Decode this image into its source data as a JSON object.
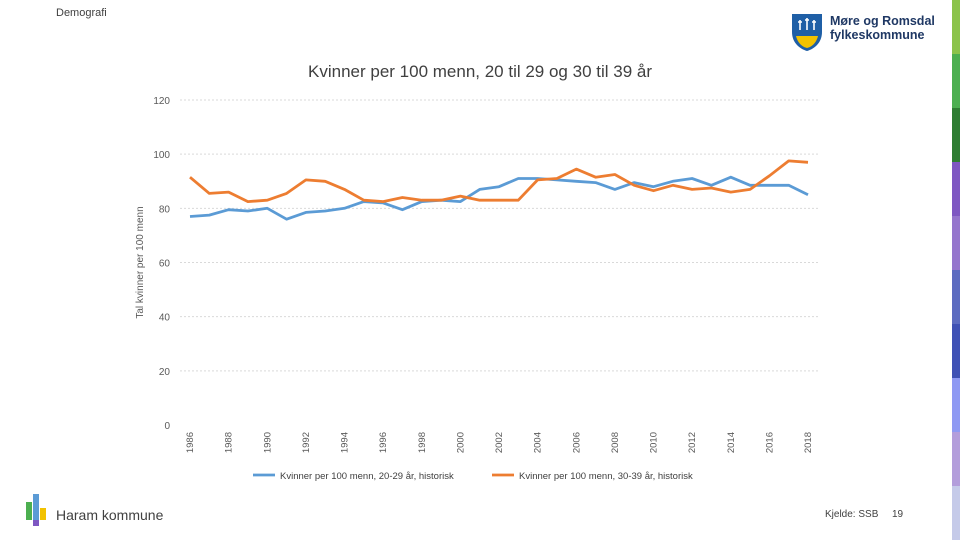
{
  "header": {
    "section": "Demografi"
  },
  "logo": {
    "line1": "Møre og Romsdal",
    "line2": "fylkeskommune"
  },
  "footer": {
    "org": "Haram kommune",
    "source": "Kjelde: SSB",
    "page": "19"
  },
  "colors": {
    "series1": "#5b9bd5",
    "series2": "#ed7d31",
    "grid": "#d9d9d9",
    "logo_blue": "#1f5fa6",
    "logo_yellow": "#f2c200"
  },
  "stripe_colors": [
    "#8bc34a",
    "#4caf50",
    "#2e7d32",
    "#7e57c2",
    "#9575cd",
    "#5c6bc0",
    "#3f51b5",
    "#8e99f3",
    "#b39ddb",
    "#c5cae9"
  ],
  "chart_data": {
    "type": "line",
    "title": "Kvinner per 100 menn, 20 til 29 og 30 til 39 år",
    "xlabel": "",
    "ylabel": "Tal kvinner per 100 menn",
    "ylim": [
      0,
      120
    ],
    "yticks": [
      "0",
      "20",
      "40",
      "60",
      "80",
      "100",
      "120"
    ],
    "xtick_labels": [
      "1986",
      "1988",
      "1990",
      "1992",
      "1994",
      "1996",
      "1998",
      "2000",
      "2002",
      "2004",
      "2006",
      "2008",
      "2010",
      "2012",
      "2014",
      "2016",
      "2018"
    ],
    "x": [
      1986,
      1987,
      1988,
      1989,
      1990,
      1991,
      1992,
      1993,
      1994,
      1995,
      1996,
      1997,
      1998,
      1999,
      2000,
      2001,
      2002,
      2003,
      2004,
      2005,
      2006,
      2007,
      2008,
      2009,
      2010,
      2011,
      2012,
      2013,
      2014,
      2015,
      2016,
      2017,
      2018
    ],
    "grid": true,
    "legend": "bottom",
    "series": [
      {
        "name": "Kvinner per 100 menn, 20-29 år, historisk",
        "values": [
          77,
          77.5,
          79.5,
          79,
          80,
          76,
          78.5,
          79,
          80,
          82.5,
          82,
          79.5,
          82.5,
          83,
          82.5,
          87,
          88,
          91,
          91,
          90.5,
          90,
          89.5,
          87,
          89.5,
          88,
          90,
          91,
          88.5,
          91.5,
          88.5,
          88.5,
          88.5,
          85
        ]
      },
      {
        "name": "Kvinner per 100 menn, 30-39 år, historisk",
        "values": [
          91.5,
          85.5,
          86,
          82.5,
          83,
          85.5,
          90.5,
          90,
          87,
          83,
          82.5,
          84,
          83,
          83,
          84.5,
          83,
          83,
          83,
          90.5,
          91,
          94.5,
          91.5,
          92.5,
          88.5,
          86.5,
          88.5,
          87,
          87.5,
          86,
          87,
          92,
          97.5,
          97
        ]
      }
    ]
  }
}
